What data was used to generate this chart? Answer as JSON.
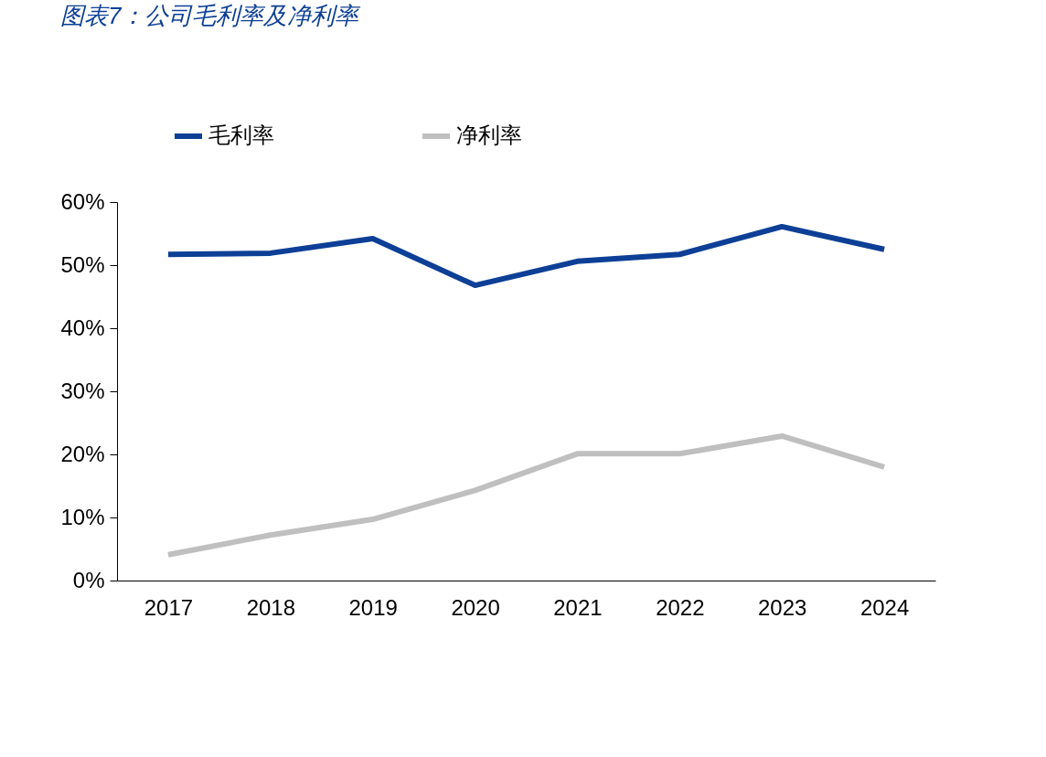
{
  "chart_data": {
    "type": "line",
    "title": "图表7：公司毛利率及净利率",
    "categories": [
      "2017",
      "2018",
      "2019",
      "2020",
      "2021",
      "2022",
      "2023",
      "2024"
    ],
    "series": [
      {
        "name": "毛利率",
        "color": "#0d3f96",
        "values": [
          51.7,
          51.9,
          54.2,
          46.8,
          50.6,
          51.7,
          56.1,
          52.5
        ]
      },
      {
        "name": "净利率",
        "color": "#bfbfbf",
        "values": [
          4.1,
          7.2,
          9.7,
          14.3,
          20.1,
          20.1,
          22.9,
          18.0
        ]
      }
    ],
    "ylim": [
      0,
      60
    ],
    "yticks": [
      {
        "value": 0,
        "label": "0%"
      },
      {
        "value": 10,
        "label": "10%"
      },
      {
        "value": 20,
        "label": "20%"
      },
      {
        "value": 30,
        "label": "30%"
      },
      {
        "value": 40,
        "label": "40%"
      },
      {
        "value": 50,
        "label": "50%"
      },
      {
        "value": 60,
        "label": "60%"
      }
    ],
    "grid": false,
    "legend": "top",
    "marker": "none",
    "line_style": "solid"
  }
}
